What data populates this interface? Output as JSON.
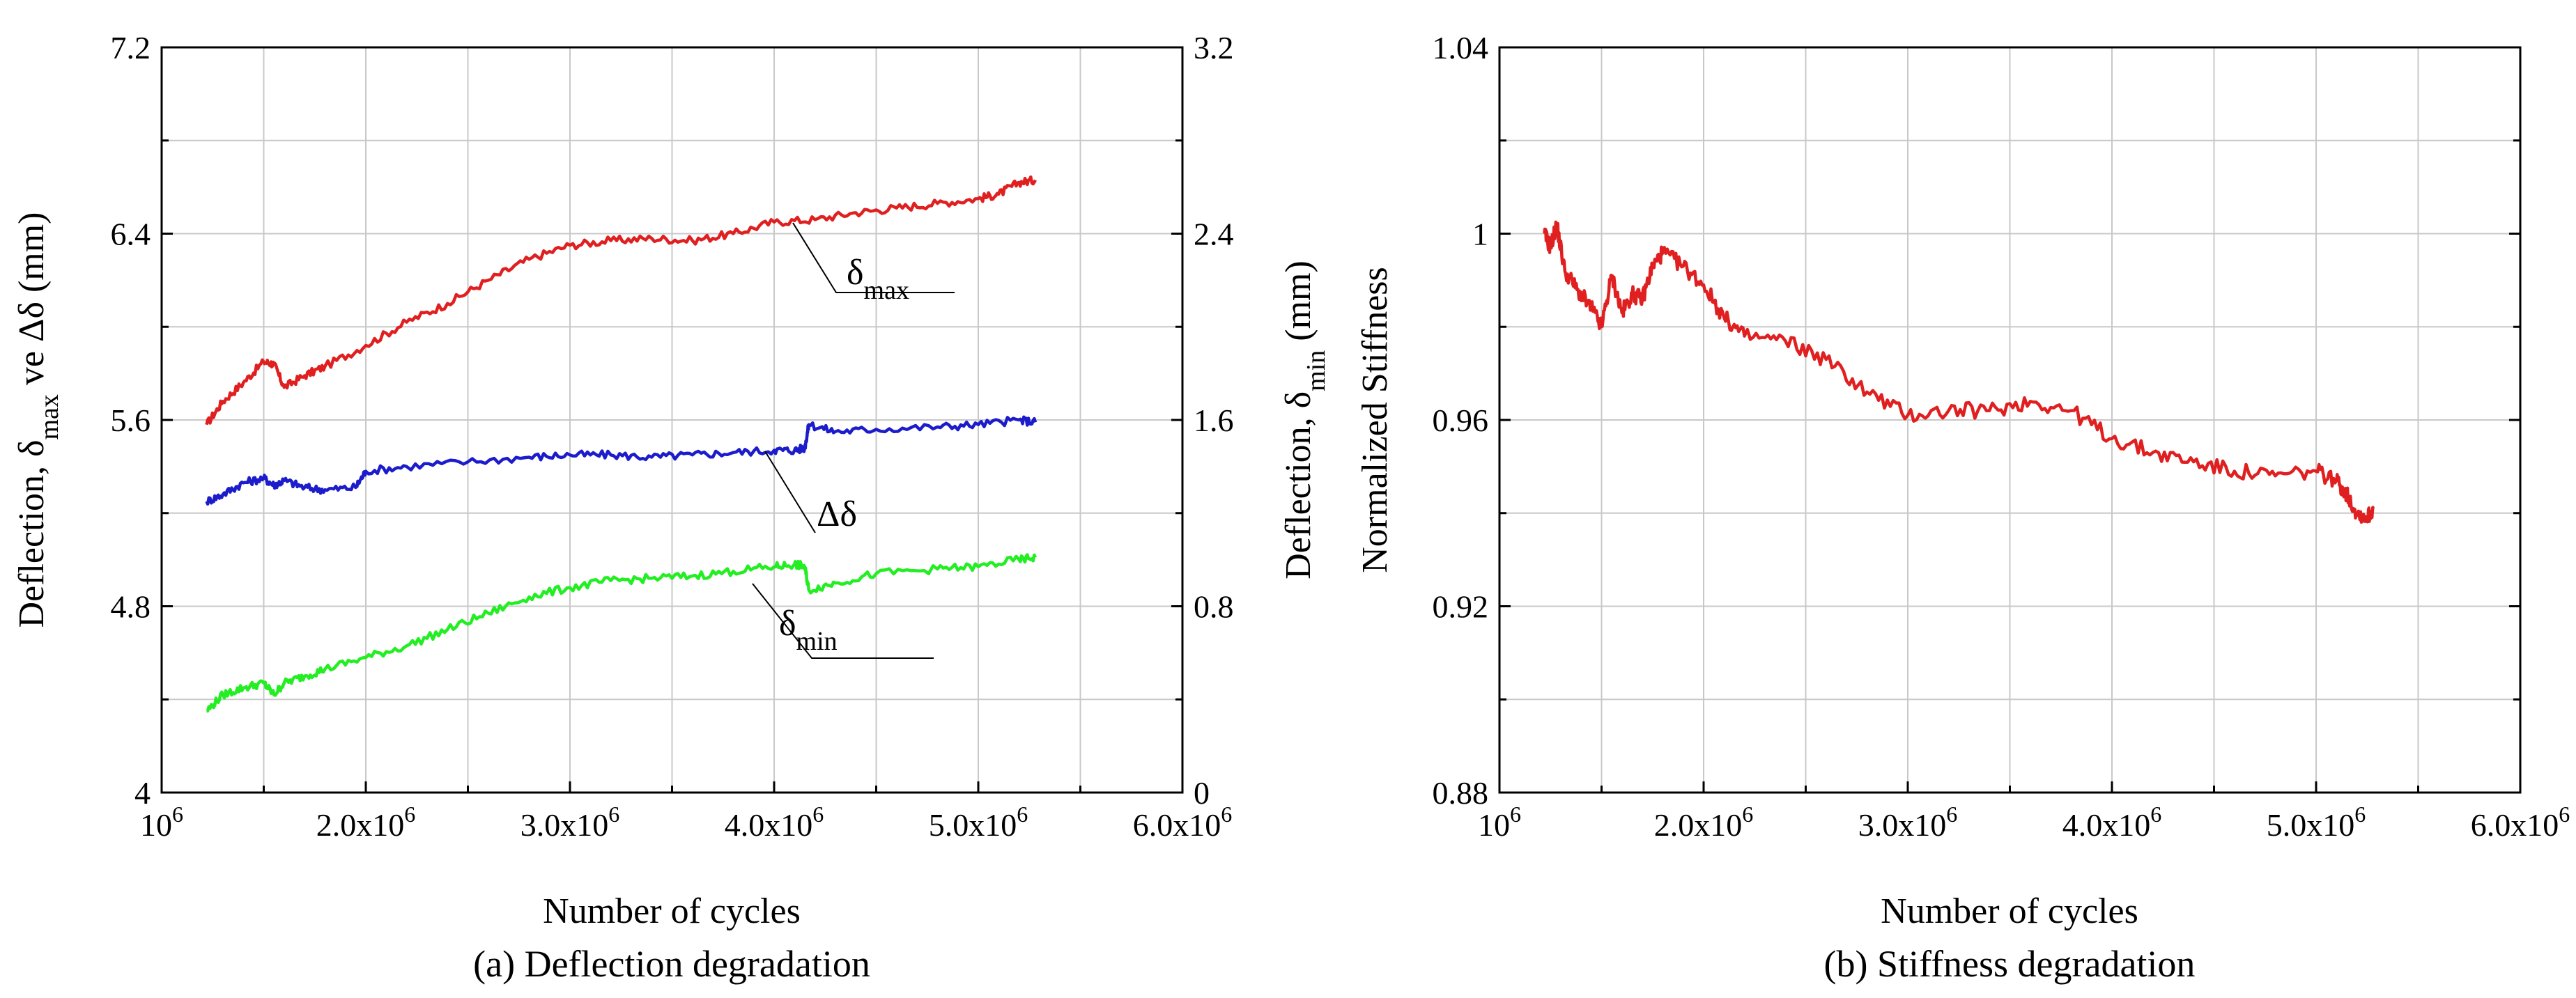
{
  "chart_data": [
    {
      "type": "line",
      "caption": "(a) Deflection degradation",
      "xlabel": "Number of cycles",
      "ylabel_left": {
        "prefix": "Deflection, ",
        "sym": "δ",
        "sub": "max",
        "suffix": " ve Δδ (mm)"
      },
      "ylabel_right": {
        "prefix": "Deflection, ",
        "sym": "δ",
        "sub": "min",
        "suffix": " (mm)"
      },
      "xlim": [
        1000000,
        6000000
      ],
      "x_ticks": [
        {
          "value": 1000000,
          "base": "10",
          "exp": "6"
        },
        {
          "value": 2000000,
          "base": "2.0x10",
          "exp": "6"
        },
        {
          "value": 3000000,
          "base": "3.0x10",
          "exp": "6"
        },
        {
          "value": 4000000,
          "base": "4.0x10",
          "exp": "6"
        },
        {
          "value": 5000000,
          "base": "5.0x10",
          "exp": "6"
        },
        {
          "value": 6000000,
          "base": "6.0x10",
          "exp": "6"
        }
      ],
      "ylim_left": [
        4,
        7.2
      ],
      "y_ticks_left": [
        "4",
        "4.8",
        "5.6",
        "6.4",
        "7.2"
      ],
      "ylim_right": [
        0,
        3.2
      ],
      "y_ticks_right": [
        "0",
        "0.8",
        "1.6",
        "2.4",
        "3.2"
      ],
      "grid": true,
      "series": [
        {
          "name": "δmax",
          "sym": "δ",
          "sub": "max",
          "axis": "left",
          "color": "#e02020",
          "x": [
            1220000.0,
            1300000.0,
            1400000.0,
            1500000.0,
            1550000.0,
            1600000.0,
            1700000.0,
            1800000.0,
            2000000.0,
            2200000.0,
            2400000.0,
            2600000.0,
            2800000.0,
            3000000.0,
            3200000.0,
            3400000.0,
            3600000.0,
            3800000.0,
            4000000.0,
            4200000.0,
            4400000.0,
            4600000.0,
            4800000.0,
            5000000.0,
            5100000.0,
            5200000.0,
            5280000.0
          ],
          "y": [
            5.58,
            5.68,
            5.76,
            5.85,
            5.84,
            5.74,
            5.79,
            5.83,
            5.92,
            6.02,
            6.1,
            6.2,
            6.29,
            6.35,
            6.37,
            6.38,
            6.37,
            6.4,
            6.45,
            6.46,
            6.49,
            6.51,
            6.53,
            6.55,
            6.57,
            6.62,
            6.63
          ]
        },
        {
          "name": "Δδ",
          "sym": "Δδ",
          "sub": "",
          "axis": "left",
          "color": "#1c1ccc",
          "x": [
            1220000.0,
            1300000.0,
            1400000.0,
            1500000.0,
            1550000.0,
            1600000.0,
            1700000.0,
            1800000.0,
            1950000.0,
            2000000.0,
            2200000.0,
            2500000.0,
            2800000.0,
            3000000.0,
            3200000.0,
            3400000.0,
            3600000.0,
            3800000.0,
            4000000.0,
            4100000.0,
            4150000.0,
            4170000.0,
            4300000.0,
            4500000.0,
            4800000.0,
            5000000.0,
            5200000.0,
            5280000.0
          ],
          "y": [
            5.25,
            5.28,
            5.33,
            5.35,
            5.32,
            5.34,
            5.31,
            5.3,
            5.31,
            5.38,
            5.4,
            5.42,
            5.44,
            5.45,
            5.45,
            5.44,
            5.45,
            5.46,
            5.47,
            5.47,
            5.48,
            5.58,
            5.55,
            5.56,
            5.57,
            5.58,
            5.6,
            5.59
          ]
        },
        {
          "name": "δmin",
          "sym": "δ",
          "sub": "min",
          "axis": "left",
          "color": "#22ee22",
          "x": [
            1220000.0,
            1300000.0,
            1400000.0,
            1500000.0,
            1550000.0,
            1600000.0,
            1700000.0,
            1800000.0,
            2000000.0,
            2200000.0,
            2400000.0,
            2600000.0,
            2800000.0,
            3000000.0,
            3200000.0,
            3400000.0,
            3600000.0,
            3800000.0,
            4000000.0,
            4100000.0,
            4150000.0,
            4170000.0,
            4300000.0,
            4500000.0,
            4800000.0,
            5000000.0,
            5200000.0,
            5280000.0
          ],
          "y": [
            4.35,
            4.42,
            4.45,
            4.47,
            4.42,
            4.47,
            4.5,
            4.53,
            4.58,
            4.63,
            4.7,
            4.77,
            4.84,
            4.88,
            4.91,
            4.92,
            4.93,
            4.95,
            4.97,
            4.98,
            4.97,
            4.87,
            4.9,
            4.94,
            4.96,
            4.97,
            5.0,
            5.01
          ]
        }
      ]
    },
    {
      "type": "line",
      "caption": "(b) Stiffness degradation",
      "xlabel": "Number of cycles",
      "ylabel": "Normalized Stiffness",
      "xlim": [
        1000000,
        6000000
      ],
      "x_ticks": [
        {
          "value": 1000000,
          "base": "10",
          "exp": "6"
        },
        {
          "value": 2000000,
          "base": "2.0x10",
          "exp": "6"
        },
        {
          "value": 3000000,
          "base": "3.0x10",
          "exp": "6"
        },
        {
          "value": 4000000,
          "base": "4.0x10",
          "exp": "6"
        },
        {
          "value": 5000000,
          "base": "5.0x10",
          "exp": "6"
        },
        {
          "value": 6000000,
          "base": "6.0x10",
          "exp": "6"
        }
      ],
      "ylim": [
        0.88,
        1.04
      ],
      "y_ticks": [
        "0.88",
        "0.92",
        "0.96",
        "1",
        "1.04"
      ],
      "grid": true,
      "series": [
        {
          "name": "Normalized Stiffness",
          "color": "#e02020",
          "x": [
            1220000.0,
            1250000.0,
            1280000.0,
            1320000.0,
            1380000.0,
            1450000.0,
            1500000.0,
            1550000.0,
            1600000.0,
            1650000.0,
            1700000.0,
            1750000.0,
            1800000.0,
            1900000.0,
            2000000.0,
            2100000.0,
            2200000.0,
            2400000.0,
            2600000.0,
            2800000.0,
            3000000.0,
            3200000.0,
            3400000.0,
            3600000.0,
            3800000.0,
            4000000.0,
            4200000.0,
            4400000.0,
            4600000.0,
            4800000.0,
            5000000.0,
            5100000.0,
            5150000.0,
            5200000.0,
            5250000.0,
            5280000.0
          ],
          "y": [
            1.0,
            0.997,
            1.002,
            0.992,
            0.988,
            0.984,
            0.98,
            0.991,
            0.983,
            0.987,
            0.986,
            0.993,
            0.996,
            0.993,
            0.989,
            0.982,
            0.978,
            0.977,
            0.973,
            0.966,
            0.961,
            0.962,
            0.962,
            0.964,
            0.962,
            0.956,
            0.953,
            0.951,
            0.949,
            0.948,
            0.949,
            0.947,
            0.944,
            0.94,
            0.939,
            0.941
          ]
        }
      ]
    }
  ],
  "annotations": {
    "dmax": {
      "sym": "δ",
      "sub": "max"
    },
    "ddelta": {
      "sym": "Δδ"
    },
    "dmin": {
      "sym": "δ",
      "sub": "min"
    }
  }
}
